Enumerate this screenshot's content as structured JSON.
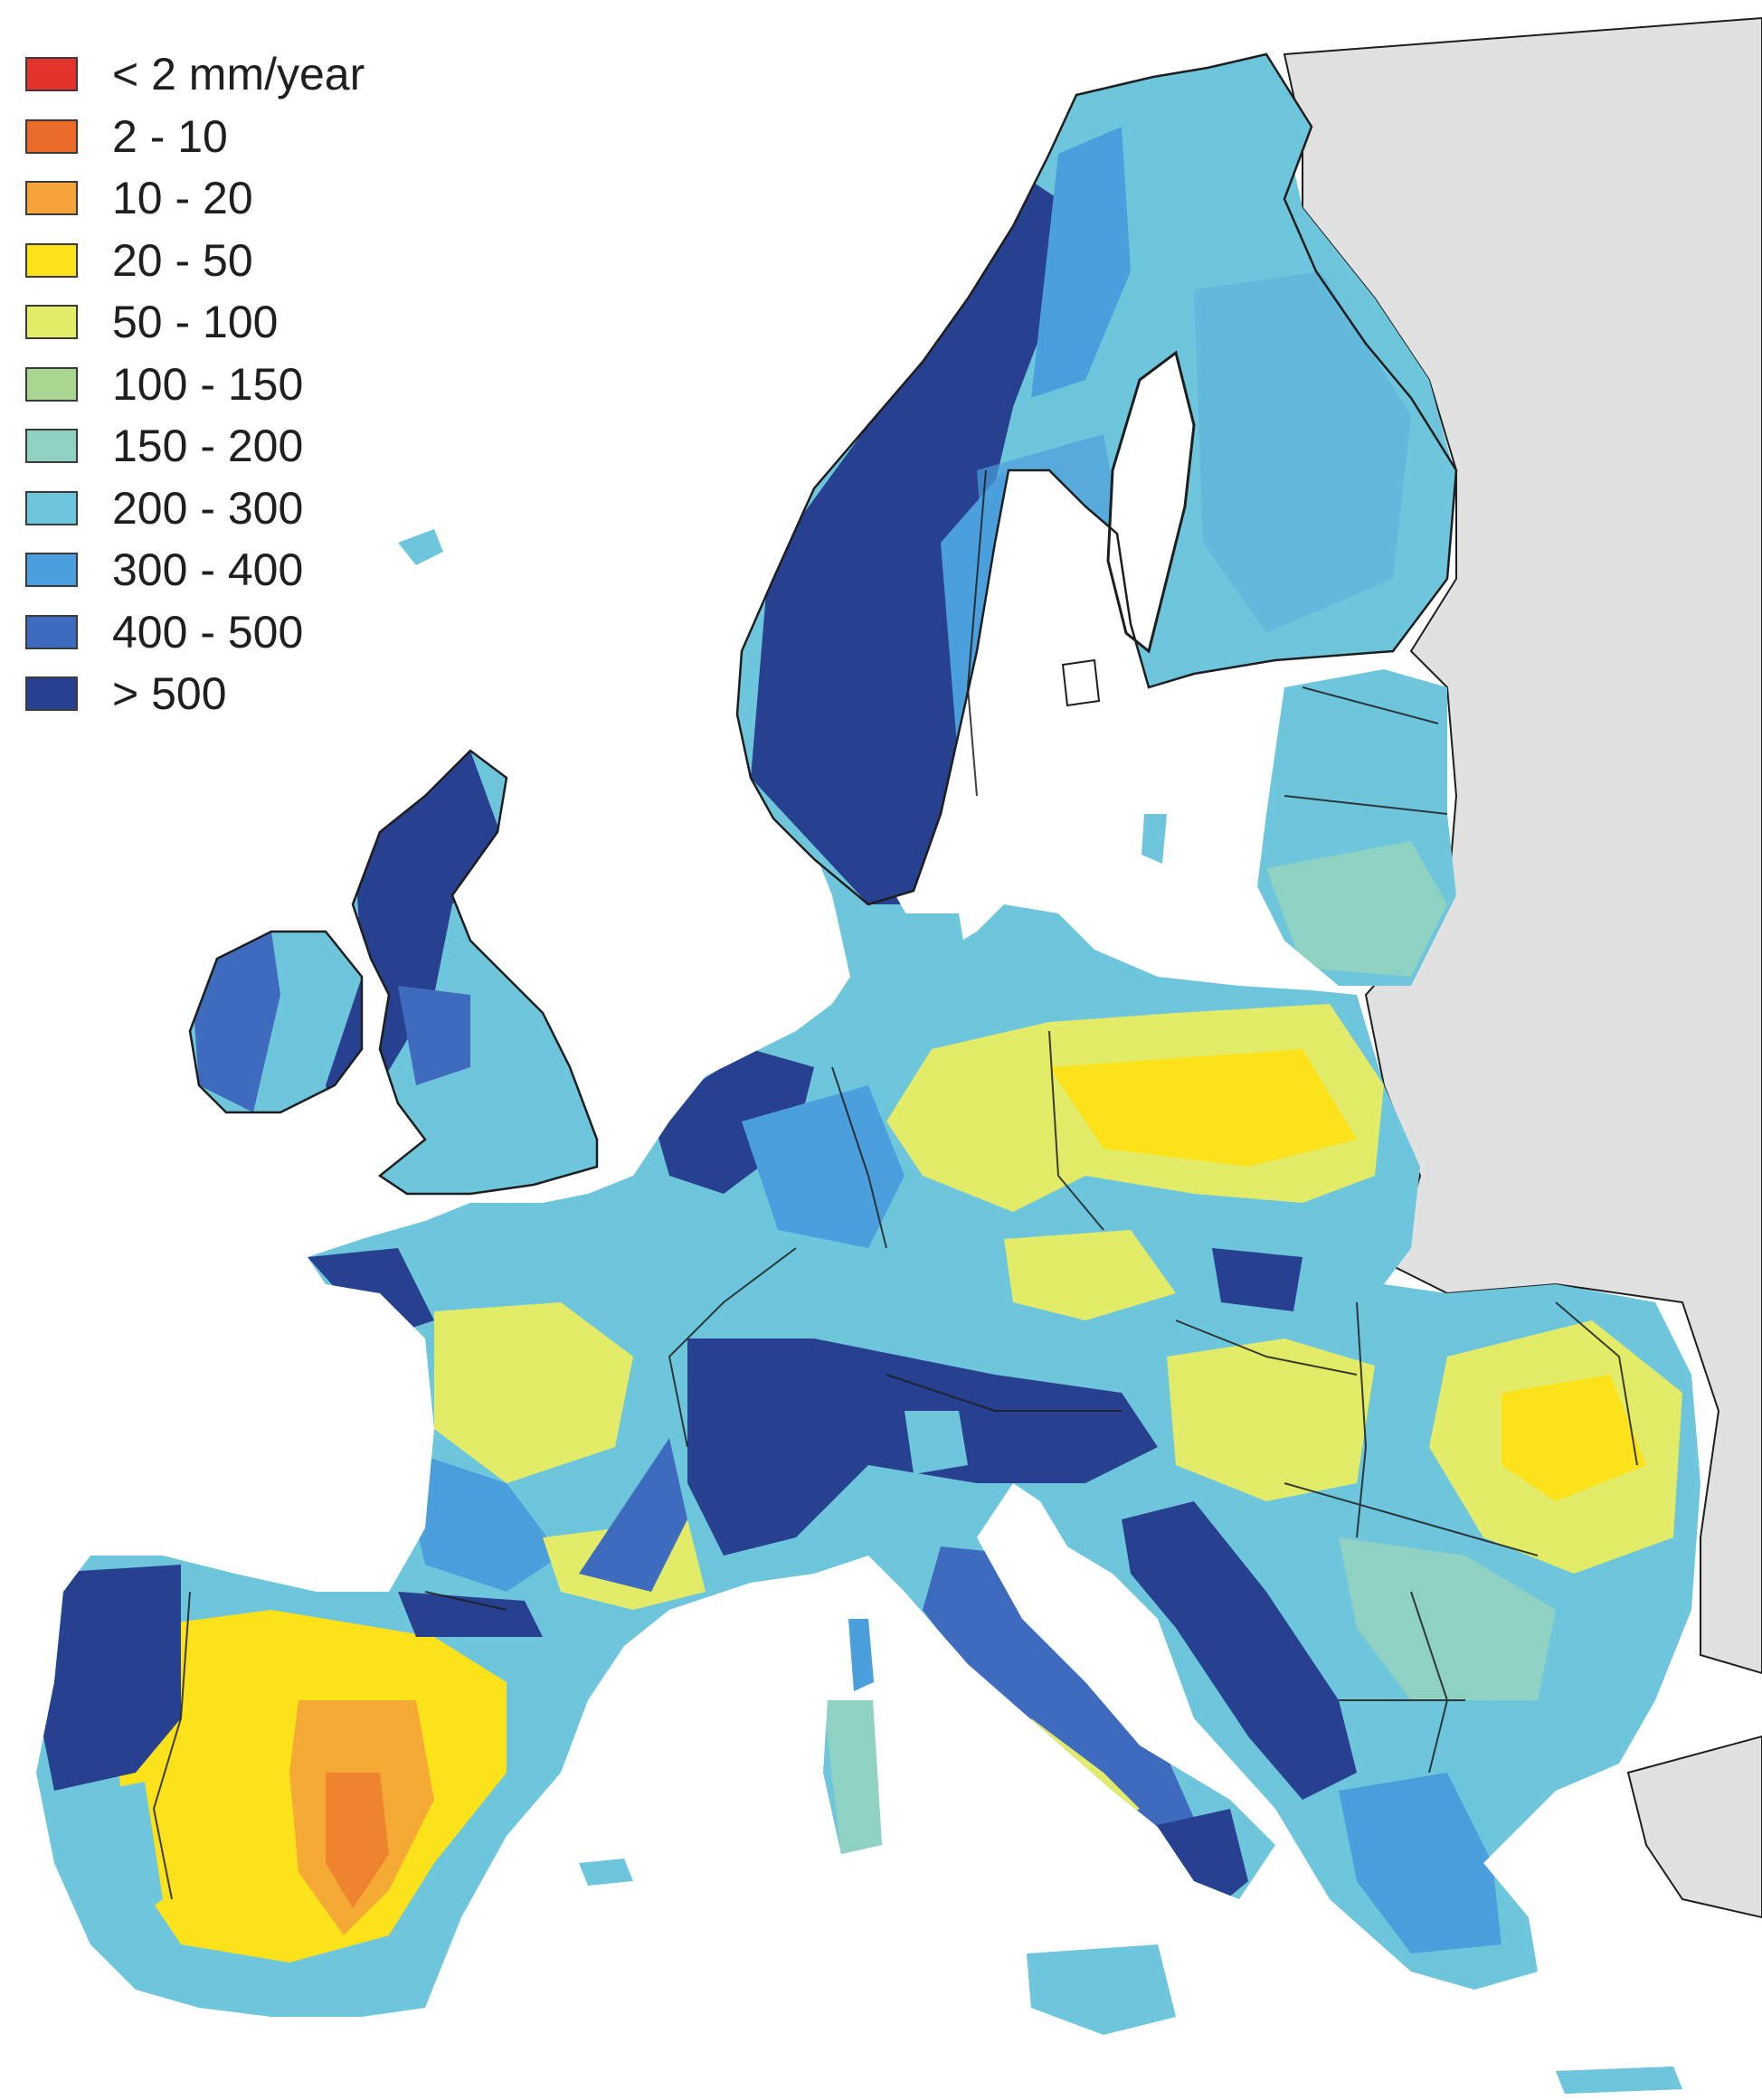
{
  "legend": {
    "items": [
      {
        "label": "< 2 mm/year",
        "color": "#e5322d"
      },
      {
        "label": "2 - 10",
        "color": "#ea6b2a"
      },
      {
        "label": "10 - 20",
        "color": "#f4a43a"
      },
      {
        "label": "20 - 50",
        "color": "#fbe21a"
      },
      {
        "label": "50 - 100",
        "color": "#e3ec69"
      },
      {
        "label": "100 - 150",
        "color": "#a9d690"
      },
      {
        "label": "150 - 200",
        "color": "#8fd2c4"
      },
      {
        "label": "200 - 300",
        "color": "#6ec6dc"
      },
      {
        "label": "300 - 400",
        "color": "#4b9fdc"
      },
      {
        "label": "400 - 500",
        "color": "#3f6bbf"
      },
      {
        "label": "> 500",
        "color": "#27408f"
      }
    ]
  },
  "map_colors": {
    "ocean": "#ffffff",
    "non_data_land": "#e1e1e1",
    "border": "#1e1e1e"
  }
}
